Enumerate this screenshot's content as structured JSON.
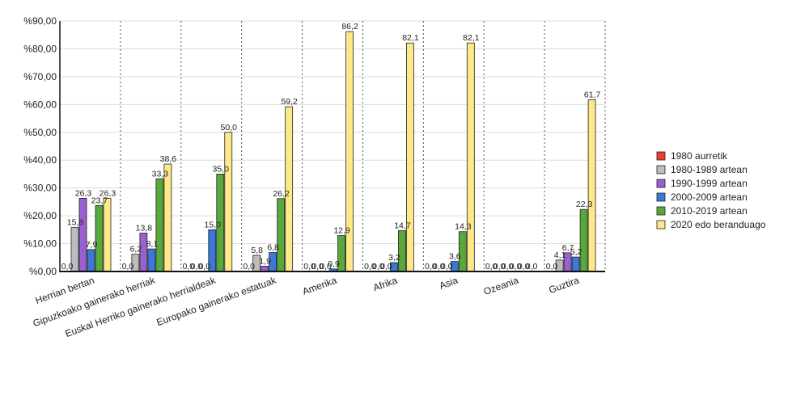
{
  "chart_data": {
    "type": "bar",
    "title": "",
    "xlabel": "",
    "ylabel": "",
    "ylim": [
      0,
      90
    ],
    "y_ticks": [
      0,
      10,
      20,
      30,
      40,
      50,
      60,
      70,
      80,
      90
    ],
    "y_tick_labels": [
      "%0,00",
      "%10,00",
      "%20,00",
      "%30,00",
      "%40,00",
      "%50,00",
      "%60,00",
      "%70,00",
      "%80,00",
      "%90,00"
    ],
    "grid": "horizontal solid, vertical dotted between categories",
    "legend_position": "right",
    "categories": [
      "Herrian bertan",
      "Gipuzkoako gainerako herriak",
      "Euskal Herriko gainerako herrialdeak",
      "Europako gainerako estatuak",
      "Amerika",
      "Afrika",
      "Asia",
      "Ozeania",
      "Guztira"
    ],
    "series": [
      {
        "name": "1980 aurretik",
        "color": "#e8412c",
        "values": [
          0.0,
          0.0,
          0.0,
          0.0,
          0.0,
          0.0,
          0.0,
          0.0,
          0.0
        ],
        "labels": [
          "0,0",
          "0,0",
          "0,0",
          "0,0",
          "0,0",
          "0,0",
          "0,0",
          "0,0",
          "0,0"
        ]
      },
      {
        "name": "1980-1989 artean",
        "color": "#bdbdbd",
        "values": [
          15.8,
          6.2,
          0.0,
          5.8,
          0.0,
          0.0,
          0.0,
          0.0,
          4.1
        ],
        "labels": [
          "15,8",
          "6,2",
          "0,0",
          "5,8",
          "0,0",
          "0,0",
          "0,0",
          "0,0",
          "4,1"
        ]
      },
      {
        "name": "1990-1999 artean",
        "color": "#9a5fd0",
        "values": [
          26.3,
          13.8,
          0.0,
          1.9,
          0.0,
          0.0,
          0.0,
          0.0,
          6.7
        ],
        "labels": [
          "26,3",
          "13,8",
          "0,0",
          "1,9",
          "0,0",
          "0,0",
          "0,0",
          "0,0",
          "6,7"
        ]
      },
      {
        "name": "2000-2009 artean",
        "color": "#3c78d8",
        "values": [
          7.9,
          8.1,
          15.0,
          6.8,
          0.9,
          3.2,
          3.6,
          0.0,
          5.2
        ],
        "labels": [
          "7,9",
          "8,1",
          "15,0",
          "6,8",
          "0,9",
          "3,2",
          "3,6",
          "0,0",
          "5,2"
        ]
      },
      {
        "name": "2010-2019 artean",
        "color": "#58a83c",
        "values": [
          23.7,
          33.3,
          35.0,
          26.2,
          12.9,
          14.7,
          14.3,
          0.0,
          22.3
        ],
        "labels": [
          "23,7",
          "33,3",
          "35,0",
          "26,2",
          "12,9",
          "14,7",
          "14,3",
          "0,0",
          "22,3"
        ]
      },
      {
        "name": "2020 edo beranduago",
        "color": "#fde88a",
        "values": [
          26.3,
          38.6,
          50.0,
          59.2,
          86.2,
          82.1,
          82.1,
          0.0,
          61.7
        ],
        "labels": [
          "26,3",
          "38,6",
          "50,0",
          "59,2",
          "86,2",
          "82,1",
          "82,1",
          "0,0",
          "61,7"
        ]
      }
    ]
  }
}
